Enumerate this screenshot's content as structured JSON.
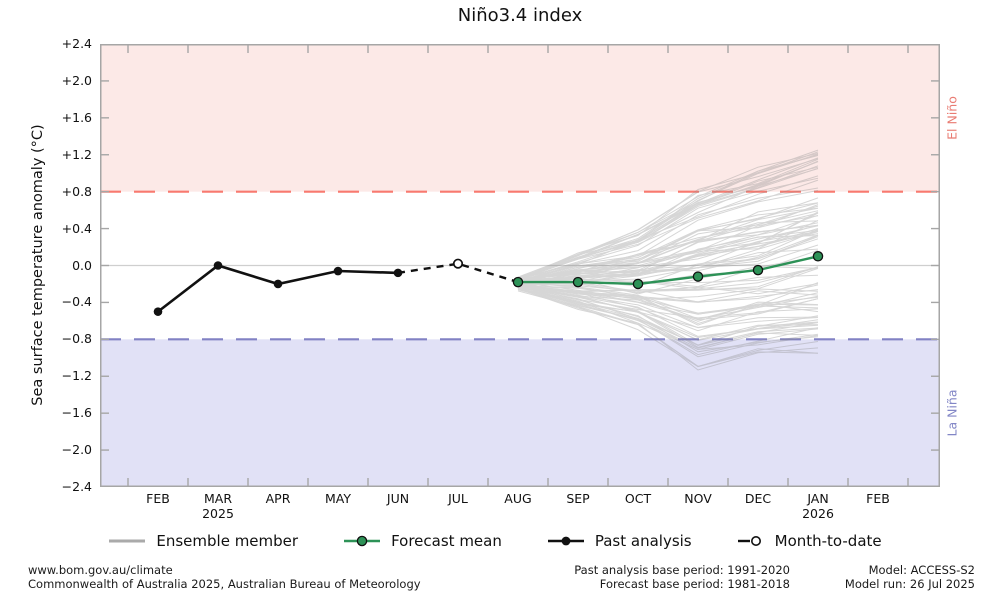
{
  "chart_data": {
    "type": "line",
    "title": "Niño3.4 index",
    "ylabel": "Sea surface temperature anomaly (°C)",
    "ylim": [
      -2.4,
      2.4
    ],
    "ytick_labels": [
      "+2.4",
      "+2.0",
      "+1.6",
      "+1.2",
      "+0.8",
      "+0.4",
      "0.0",
      "−0.4",
      "−0.8",
      "−1.2",
      "−1.6",
      "−2.0",
      "−2.4"
    ],
    "x_months": [
      "FEB",
      "MAR",
      "APR",
      "MAY",
      "JUN",
      "JUL",
      "AUG",
      "SEP",
      "OCT",
      "NOV",
      "DEC",
      "JAN",
      "FEB"
    ],
    "x_year_labels": [
      {
        "month_index": 1,
        "label": "2025"
      },
      {
        "month_index": 11,
        "label": "2026"
      }
    ],
    "thresholds": {
      "el_nino": 0.8,
      "la_nina": -0.8
    },
    "regions": {
      "el_nino_label": "El Niño",
      "la_nina_label": "La Niña"
    },
    "past_analysis": {
      "name": "Past analysis",
      "months": [
        "FEB",
        "MAR",
        "APR",
        "MAY",
        "JUN"
      ],
      "month_indices": [
        0,
        1,
        2,
        3,
        4
      ],
      "values": [
        -0.5,
        0.0,
        -0.2,
        -0.06,
        -0.08
      ]
    },
    "month_to_date": {
      "name": "Month-to-date",
      "months": [
        "JUL"
      ],
      "month_indices": [
        5
      ],
      "values": [
        0.02
      ],
      "style": "dashed-connector-open-marker"
    },
    "forecast_mean": {
      "name": "Forecast mean",
      "months": [
        "AUG",
        "SEP",
        "OCT",
        "NOV",
        "DEC",
        "JAN"
      ],
      "month_indices": [
        6,
        7,
        8,
        9,
        10,
        11
      ],
      "values": [
        -0.18,
        -0.18,
        -0.2,
        -0.12,
        -0.05,
        0.1
      ]
    },
    "ensemble": {
      "name": "Ensemble member",
      "count": 99,
      "months": [
        "AUG",
        "SEP",
        "OCT",
        "NOV",
        "DEC",
        "JAN"
      ],
      "month_indices": [
        6,
        7,
        8,
        9,
        10,
        11
      ],
      "envelope_min": [
        -0.5,
        -0.72,
        -0.85,
        -1.3,
        -1.0,
        -0.95
      ],
      "envelope_max": [
        -0.02,
        0.4,
        0.6,
        0.95,
        1.1,
        1.25
      ],
      "seed": 42
    }
  },
  "colors": {
    "el_nino_band": "#fce9e7",
    "la_nina_band": "#e1e1f6",
    "el_nino_line": "#f8796f",
    "la_nina_line": "#8181c4",
    "el_nino_text": "#e97c73",
    "la_nina_text": "#8286c6",
    "forecast_green": "#2d9257",
    "ensemble_gray": "#8c8c8c",
    "past_black": "#111111",
    "open_marker_fill": "#ffffff",
    "zero_line": "#cfcfcf",
    "frame": "#a6a6a6"
  },
  "legend": {
    "items": [
      {
        "label": "Ensemble member"
      },
      {
        "label": "Forecast mean"
      },
      {
        "label": "Past analysis"
      },
      {
        "label": "Month-to-date"
      }
    ]
  },
  "footer": {
    "left_line1": "www.bom.gov.au/climate",
    "left_line2": "Commonwealth of Australia 2025, Australian Bureau of Meteorology",
    "center_line1": "Past analysis base period: 1991-2020",
    "center_line2": "Forecast base period: 1981-2018",
    "right_line1": "Model: ACCESS-S2",
    "right_line2": "Model run: 26 Jul 2025"
  }
}
